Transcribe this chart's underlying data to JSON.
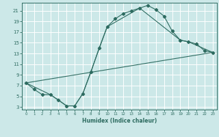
{
  "xlabel": "Humidex (Indice chaleur)",
  "bg_color": "#cce8e8",
  "grid_color": "#ffffff",
  "line_color": "#2d6b60",
  "xlim": [
    -0.5,
    23.5
  ],
  "ylim": [
    2.5,
    22.5
  ],
  "xticks": [
    0,
    1,
    2,
    3,
    4,
    5,
    6,
    7,
    8,
    9,
    10,
    11,
    12,
    13,
    14,
    15,
    16,
    17,
    18,
    19,
    20,
    21,
    22,
    23
  ],
  "yticks": [
    3,
    5,
    7,
    9,
    11,
    13,
    15,
    17,
    19,
    21
  ],
  "curve1_x": [
    0,
    1,
    2,
    3,
    4,
    5,
    6,
    7,
    8,
    9,
    10,
    11,
    12,
    13,
    14,
    15,
    16,
    17,
    18,
    19,
    20,
    21,
    22,
    23
  ],
  "curve1_y": [
    7.5,
    6.3,
    5.3,
    5.3,
    4.3,
    3.2,
    3.2,
    5.5,
    9.5,
    14.0,
    18.0,
    19.5,
    20.5,
    21.0,
    21.5,
    22.0,
    21.2,
    20.0,
    17.2,
    15.5,
    15.2,
    14.8,
    13.5,
    13.2
  ],
  "curve2_x": [
    0,
    3,
    5,
    6,
    7,
    10,
    14,
    19,
    20,
    23
  ],
  "curve2_y": [
    7.5,
    5.3,
    3.2,
    3.2,
    5.5,
    18.0,
    21.5,
    15.5,
    15.2,
    13.2
  ],
  "curve3_x": [
    0,
    23
  ],
  "curve3_y": [
    7.5,
    13.2
  ]
}
